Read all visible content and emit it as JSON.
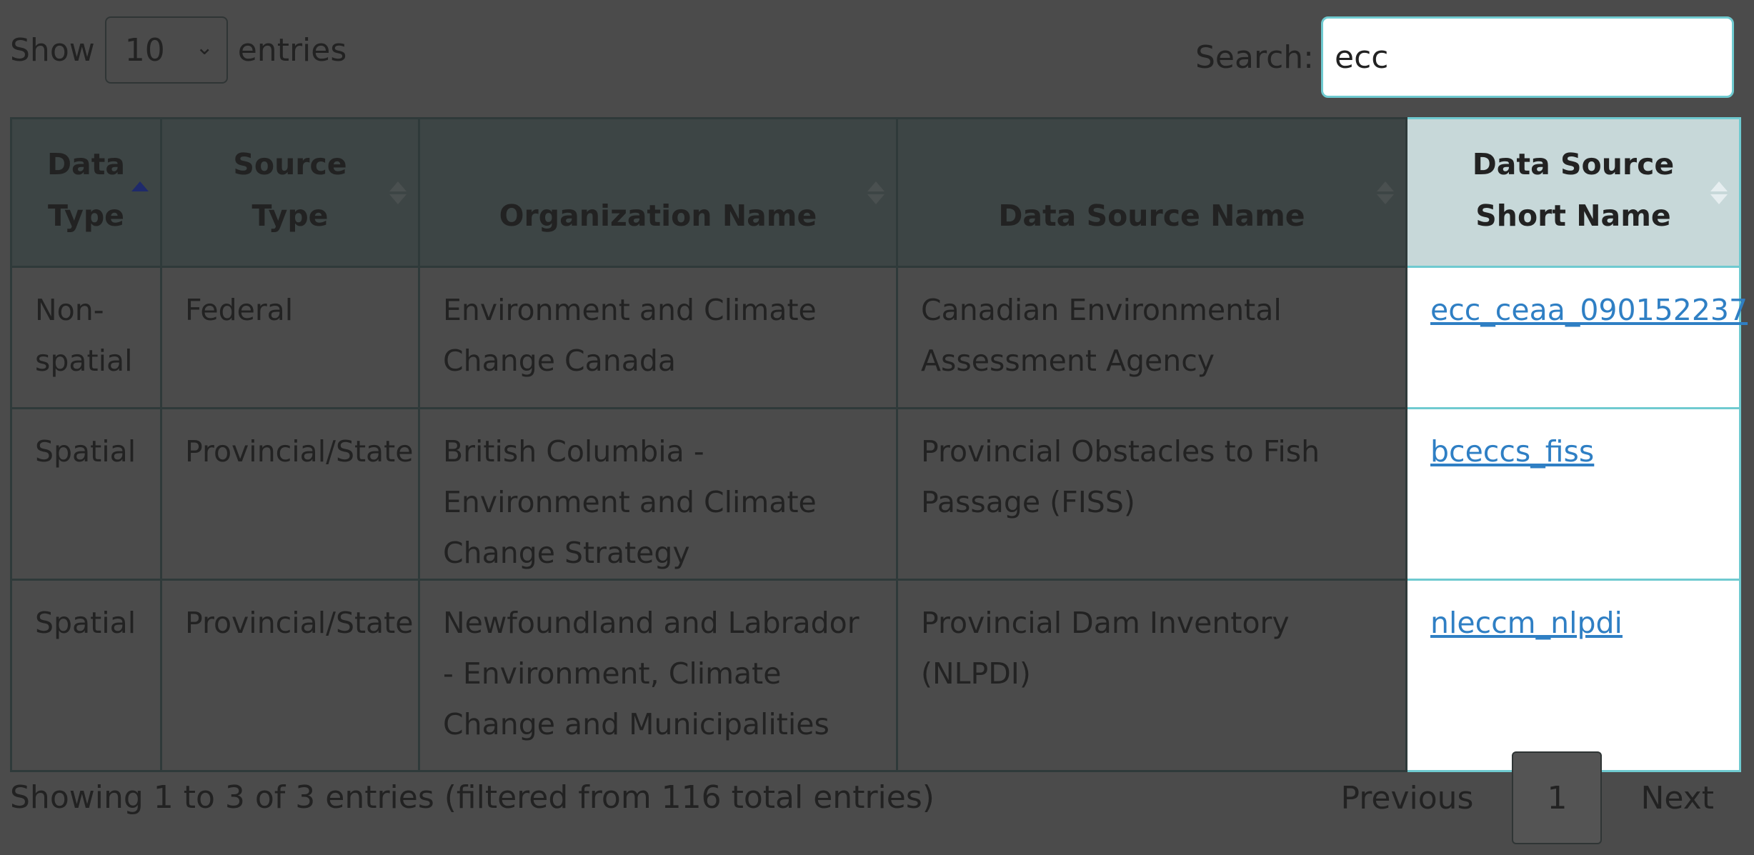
{
  "length_menu": {
    "prefix": "Show",
    "selected": "10",
    "suffix": "entries"
  },
  "search": {
    "label": "Search:",
    "value": "ecc"
  },
  "table": {
    "headers": {
      "data_type": "Data Type",
      "source_type": "Source Type",
      "organization_name": "Organization Name",
      "data_source_name": "Data Source Name",
      "short_name": "Data Source Short Name"
    },
    "rows": [
      {
        "data_type": "Non-spatial",
        "source_type": "Federal",
        "organization_name": "Environment and Climate Change Canada",
        "data_source_name": "Canadian Environmental Assessment Agency",
        "short_name": "ecc_ceaa_090152237"
      },
      {
        "data_type": "Spatial",
        "source_type": "Provincial/State",
        "organization_name": "British Columbia - Environment and Climate Change Strategy",
        "data_source_name": "Provincial Obstacles to Fish Passage (FISS)",
        "short_name": "bceccs_fiss"
      },
      {
        "data_type": "Spatial",
        "source_type": "Provincial/State",
        "organization_name": "Newfoundland and Labrador - Environment, Climate Change and Municipalities",
        "data_source_name": "Provincial Dam Inventory (NLPDI)",
        "short_name": "nleccm_nlpdi"
      }
    ]
  },
  "info": "Showing 1 to 3 of 3 entries (filtered from 116 total entries)",
  "pagination": {
    "previous": "Previous",
    "current": "1",
    "next": "Next"
  }
}
